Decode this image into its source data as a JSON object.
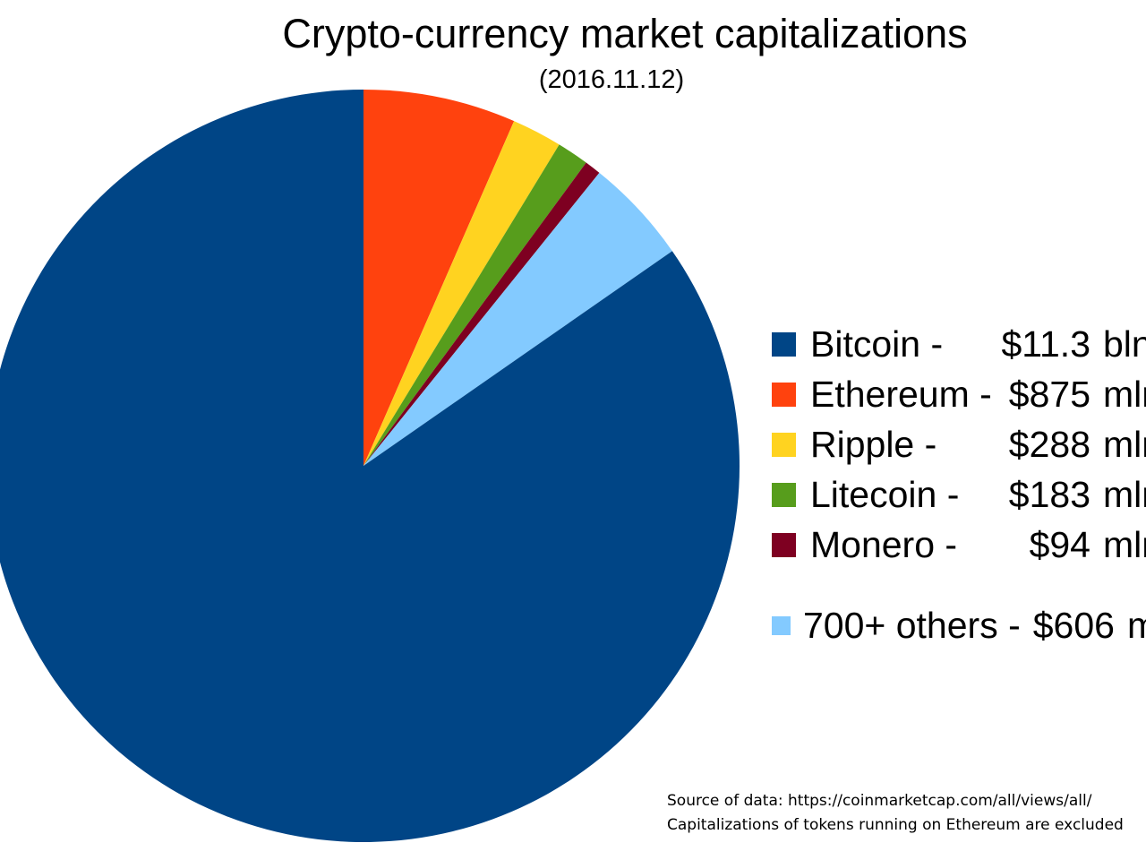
{
  "source": {
    "line1": "Source of data: https://coinmarketcap.com/all/views/all/",
    "line2": "Capitalizations of tokens running on Ethereum are excluded"
  },
  "chart_data": {
    "type": "pie",
    "title": "Crypto-currency market capitalizations",
    "subtitle": "(2016.11.12)",
    "legend_position": "right",
    "direction": "clockwise",
    "start_angle_deg": 0,
    "draw_order_indices": [
      1,
      2,
      3,
      4,
      5,
      0
    ],
    "slices": [
      {
        "label": "Bitcoin",
        "display_label": "Bitcoin -",
        "value_text": "$11.3",
        "unit": "bln",
        "value_mln_usd": 11300,
        "color": "#004586"
      },
      {
        "label": "Ethereum",
        "display_label": "Ethereum -",
        "value_text": "$875",
        "unit": "mln",
        "value_mln_usd": 875,
        "color": "#FF420E"
      },
      {
        "label": "Ripple",
        "display_label": "Ripple -",
        "value_text": "$288",
        "unit": "mln",
        "value_mln_usd": 288,
        "color": "#FFD320"
      },
      {
        "label": "Litecoin",
        "display_label": "Litecoin -",
        "value_text": "$183",
        "unit": "mln",
        "value_mln_usd": 183,
        "color": "#579D1C"
      },
      {
        "label": "Monero",
        "display_label": "Monero -",
        "value_text": "$94",
        "unit": "mln",
        "value_mln_usd": 94,
        "color": "#7E0021"
      },
      {
        "label": "700+ others",
        "display_label": "700+ others -",
        "value_text": "$606",
        "unit": "mln",
        "value_mln_usd": 606,
        "color": "#83CAFF"
      }
    ]
  }
}
